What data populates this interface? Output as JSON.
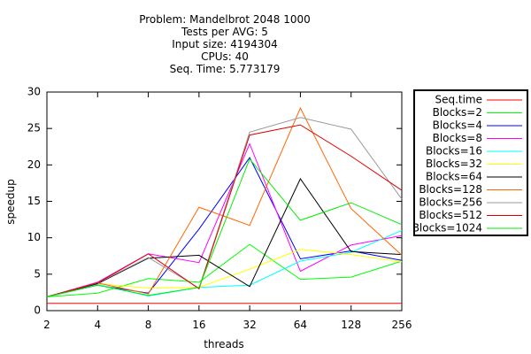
{
  "chart_data": {
    "type": "line",
    "title_lines": [
      "Problem: Mandelbrot 2048 1000",
      "Tests per AVG: 5",
      "Input size: 4194304",
      "CPUs: 40",
      "Seq. Time: 5.773179"
    ],
    "xlabel": "threads",
    "ylabel": "speedup",
    "x": [
      2,
      4,
      8,
      16,
      32,
      64,
      128,
      256
    ],
    "x_scale": "log2",
    "xlim": [
      2,
      256
    ],
    "ylim": [
      0,
      30
    ],
    "yticks": [
      0,
      5,
      10,
      15,
      20,
      25,
      30
    ],
    "grid": false,
    "legend_placement": "outside-right",
    "series": [
      {
        "name": "Seq.time",
        "color": "#ff0000",
        "values": [
          1,
          1,
          1,
          1,
          1,
          1,
          1,
          1
        ]
      },
      {
        "name": "Blocks=2",
        "color": "#00ff00",
        "values": [
          1.9,
          2.4,
          4.4,
          3.9,
          9.1,
          4.3,
          4.6,
          6.8
        ]
      },
      {
        "name": "Blocks=4",
        "color": "#0000ff",
        "values": [
          1.9,
          3.5,
          2.4,
          11.2,
          21.0,
          7.1,
          8.2,
          6.9
        ]
      },
      {
        "name": "Blocks=8",
        "color": "#ff00ff",
        "values": [
          1.9,
          3.9,
          7.8,
          6.6,
          22.9,
          5.4,
          9.0,
          10.3
        ]
      },
      {
        "name": "Blocks=16",
        "color": "#00ffff",
        "values": [
          1.9,
          3.6,
          2.0,
          3.2,
          3.5,
          6.8,
          8.0,
          11.0
        ]
      },
      {
        "name": "Blocks=32",
        "color": "#ffff00",
        "values": [
          1.9,
          3.7,
          3.1,
          3.2,
          5.7,
          8.4,
          7.7,
          6.7
        ]
      },
      {
        "name": "Blocks=64",
        "color": "#000000",
        "values": [
          1.9,
          3.7,
          7.2,
          7.6,
          3.3,
          18.1,
          8.1,
          7.7
        ]
      },
      {
        "name": "Blocks=128",
        "color": "#ff6600",
        "values": [
          1.9,
          3.8,
          2.3,
          14.2,
          11.7,
          27.8,
          14.0,
          7.6
        ]
      },
      {
        "name": "Blocks=256",
        "color": "#999999",
        "values": [
          1.9,
          3.8,
          7.3,
          3.1,
          24.5,
          26.5,
          24.9,
          15.3
        ]
      },
      {
        "name": "Blocks=512",
        "color": "#dd0000",
        "values": [
          1.9,
          3.8,
          7.8,
          3.0,
          24.1,
          25.5,
          21.2,
          16.5
        ]
      },
      {
        "name": "Blocks=1024",
        "color": "#00ee00",
        "values": [
          1.9,
          3.5,
          2.1,
          3.2,
          20.8,
          12.4,
          14.8,
          11.8
        ]
      }
    ]
  }
}
